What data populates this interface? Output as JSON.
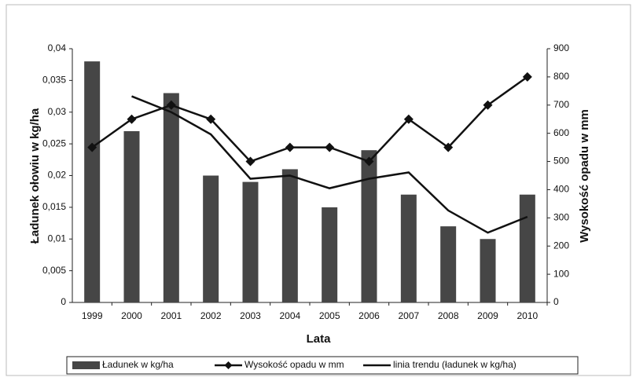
{
  "chart_data": {
    "type": "bar",
    "categories": [
      "1999",
      "2000",
      "2001",
      "2002",
      "2003",
      "2004",
      "2005",
      "2006",
      "2007",
      "2008",
      "2009",
      "2010"
    ],
    "x_label": "Lata",
    "y_label": "Ładunek ołowiu w kg/ha",
    "y2_label": "Wysokość opadu w mm",
    "ylim": [
      0,
      0.04
    ],
    "yticks": [
      0,
      {
        "value": 0.005,
        "label": "0,005"
      },
      {
        "value": 0.01,
        "label": "0,01"
      },
      {
        "value": 0.015,
        "label": "0,015"
      },
      {
        "value": 0.02,
        "label": "0,02"
      },
      {
        "value": 0.025,
        "label": "0,025"
      },
      {
        "value": 0.03,
        "label": "0,03"
      },
      {
        "value": 0.035,
        "label": "0,035"
      },
      {
        "value": 0.04,
        "label": "0,04"
      }
    ],
    "y2lim": [
      0,
      900
    ],
    "y2ticks": [
      0,
      100,
      200,
      300,
      400,
      500,
      600,
      700,
      800,
      900
    ],
    "legend": "bottom",
    "series": [
      {
        "name": "Ładunek w kg/ha",
        "type": "bar",
        "color": "#464646",
        "values": [
          0.038,
          0.027,
          0.033,
          0.02,
          0.019,
          0.021,
          0.015,
          0.024,
          0.017,
          0.012,
          0.01,
          0.017
        ]
      },
      {
        "name": "Wysokość opadu w mm",
        "type": "line",
        "marker": "diamond",
        "axis": "y2",
        "color": "#111111",
        "values": [
          550,
          650,
          700,
          650,
          500,
          550,
          550,
          500,
          650,
          550,
          700,
          800
        ]
      },
      {
        "name": "linia trendu (ładunek w kg/ha)",
        "type": "line",
        "color": "#111111",
        "values": [
          null,
          0.0325,
          0.03,
          0.0265,
          0.0195,
          0.02,
          0.018,
          0.0195,
          0.0205,
          0.0145,
          0.011,
          0.0135
        ]
      }
    ]
  }
}
